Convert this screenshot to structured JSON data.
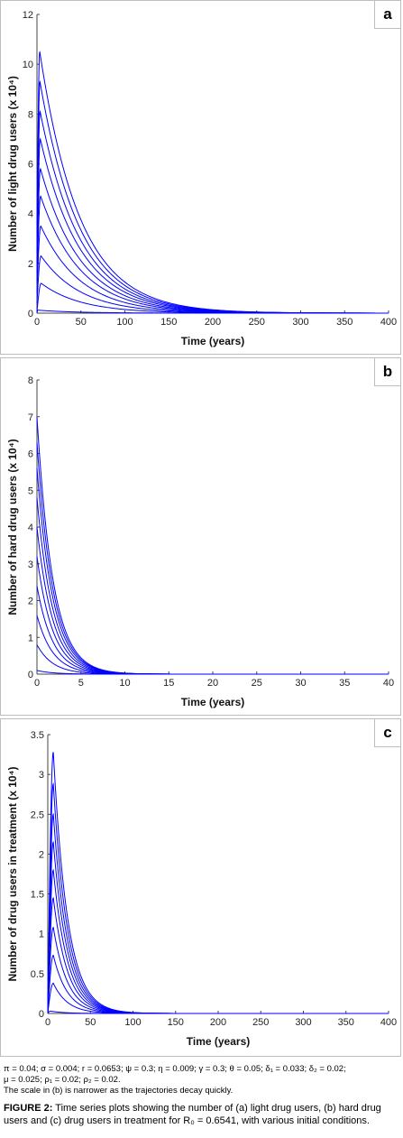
{
  "panels": [
    {
      "letter": "a",
      "xlabel": "Time (years)",
      "ylabel": "Number of light drug users (x 10⁴)",
      "xticks": [
        "0",
        "50",
        "100",
        "150",
        "200",
        "250",
        "300",
        "350",
        "400"
      ],
      "yticks": [
        "0",
        "2",
        "4",
        "6",
        "8",
        "10",
        "12"
      ]
    },
    {
      "letter": "b",
      "xlabel": "Time (years)",
      "ylabel": "Number of hard drug users (x 10⁴)",
      "xticks": [
        "0",
        "5",
        "10",
        "15",
        "20",
        "25",
        "30",
        "35",
        "40"
      ],
      "yticks": [
        "0",
        "1",
        "2",
        "3",
        "4",
        "5",
        "6",
        "7",
        "8"
      ]
    },
    {
      "letter": "c",
      "xlabel": "Time (years)",
      "ylabel": "Number of drug users in treatment (x 10⁴)",
      "xticks": [
        "0",
        "50",
        "100",
        "150",
        "200",
        "250",
        "300",
        "350",
        "400"
      ],
      "yticks": [
        "0",
        "0.5",
        "1",
        "1.5",
        "2",
        "2.5",
        "3",
        "3.5"
      ]
    }
  ],
  "parameters_line1": "π = 0.04; σ = 0.004; r = 0.0653; ψ = 0.3; η = 0.009; γ = 0.3; θ = 0.05; δ₁ = 0.033; δ₂ = 0.02;",
  "parameters_line2": "μ = 0.025; ρ₁ = 0.02; ρ₂ = 0.02.",
  "scale_note": "The scale in (b) is narrower as the trajectories decay quickly.",
  "caption_label": "FIGURE 2:",
  "caption_text": "Time series plots showing the number of (a) light drug users, (b) hard drug users and (c) drug users in treatment for R₀ = 0.6541, with various initial conditions.",
  "colors": {
    "line": "#0000ff",
    "border": "#bdbdbd"
  },
  "chart_data": [
    {
      "type": "line",
      "title": "",
      "xlabel": "Time (years)",
      "ylabel": "Number of light drug users (x 10⁴)",
      "xlim": [
        0,
        400
      ],
      "ylim": [
        0,
        12
      ],
      "legend": "none",
      "grid": false,
      "series": [
        {
          "peak_t": 4.8,
          "peak_y": 1.2,
          "y0": 0.05
        },
        {
          "peak_t": 4.6,
          "peak_y": 2.3,
          "y0": 0.4
        },
        {
          "peak_t": 4.4,
          "peak_y": 3.5,
          "y0": 0.8
        },
        {
          "peak_t": 4.2,
          "peak_y": 4.7,
          "y0": 1.2
        },
        {
          "peak_t": 4.0,
          "peak_y": 5.8,
          "y0": 1.6
        },
        {
          "peak_t": 3.8,
          "peak_y": 7.0,
          "y0": 2.0
        },
        {
          "peak_t": 3.6,
          "peak_y": 8.1,
          "y0": 2.4
        },
        {
          "peak_t": 3.4,
          "peak_y": 9.3,
          "y0": 2.8
        },
        {
          "peak_t": 3.2,
          "peak_y": 10.5,
          "y0": 3.2
        },
        {
          "peak_t": 1.0,
          "peak_y": 0.12,
          "y0": 0.0
        }
      ],
      "decay_rate": 0.022
    },
    {
      "type": "line",
      "title": "",
      "xlabel": "Time (years)",
      "ylabel": "Number of hard drug users (x 10⁴)",
      "xlim": [
        0,
        40
      ],
      "ylim": [
        0,
        8
      ],
      "legend": "none",
      "grid": false,
      "series": [
        {
          "y0": 0.8
        },
        {
          "y0": 1.6
        },
        {
          "y0": 2.4
        },
        {
          "y0": 3.2
        },
        {
          "y0": 4.0
        },
        {
          "y0": 4.8
        },
        {
          "y0": 5.6
        },
        {
          "y0": 6.3
        },
        {
          "y0": 7.0
        },
        {
          "y0": 0.1
        }
      ],
      "decay_rate": 0.55
    },
    {
      "type": "line",
      "title": "",
      "xlabel": "Time (years)",
      "ylabel": "Number of drug users in treatment (x 10⁴)",
      "xlim": [
        0,
        400
      ],
      "ylim": [
        0,
        3.5
      ],
      "legend": "none",
      "grid": false,
      "series": [
        {
          "peak_t": 6.5,
          "peak_y": 0.38
        },
        {
          "peak_t": 6.5,
          "peak_y": 0.73
        },
        {
          "peak_t": 6.5,
          "peak_y": 1.08
        },
        {
          "peak_t": 6.5,
          "peak_y": 1.45
        },
        {
          "peak_t": 6.5,
          "peak_y": 1.8
        },
        {
          "peak_t": 6.5,
          "peak_y": 2.15
        },
        {
          "peak_t": 6.5,
          "peak_y": 2.5
        },
        {
          "peak_t": 6.5,
          "peak_y": 2.88
        },
        {
          "peak_t": 6.5,
          "peak_y": 3.28
        },
        {
          "peak_t": 3.0,
          "peak_y": 0.03
        }
      ],
      "decay_rate": 0.06
    }
  ]
}
